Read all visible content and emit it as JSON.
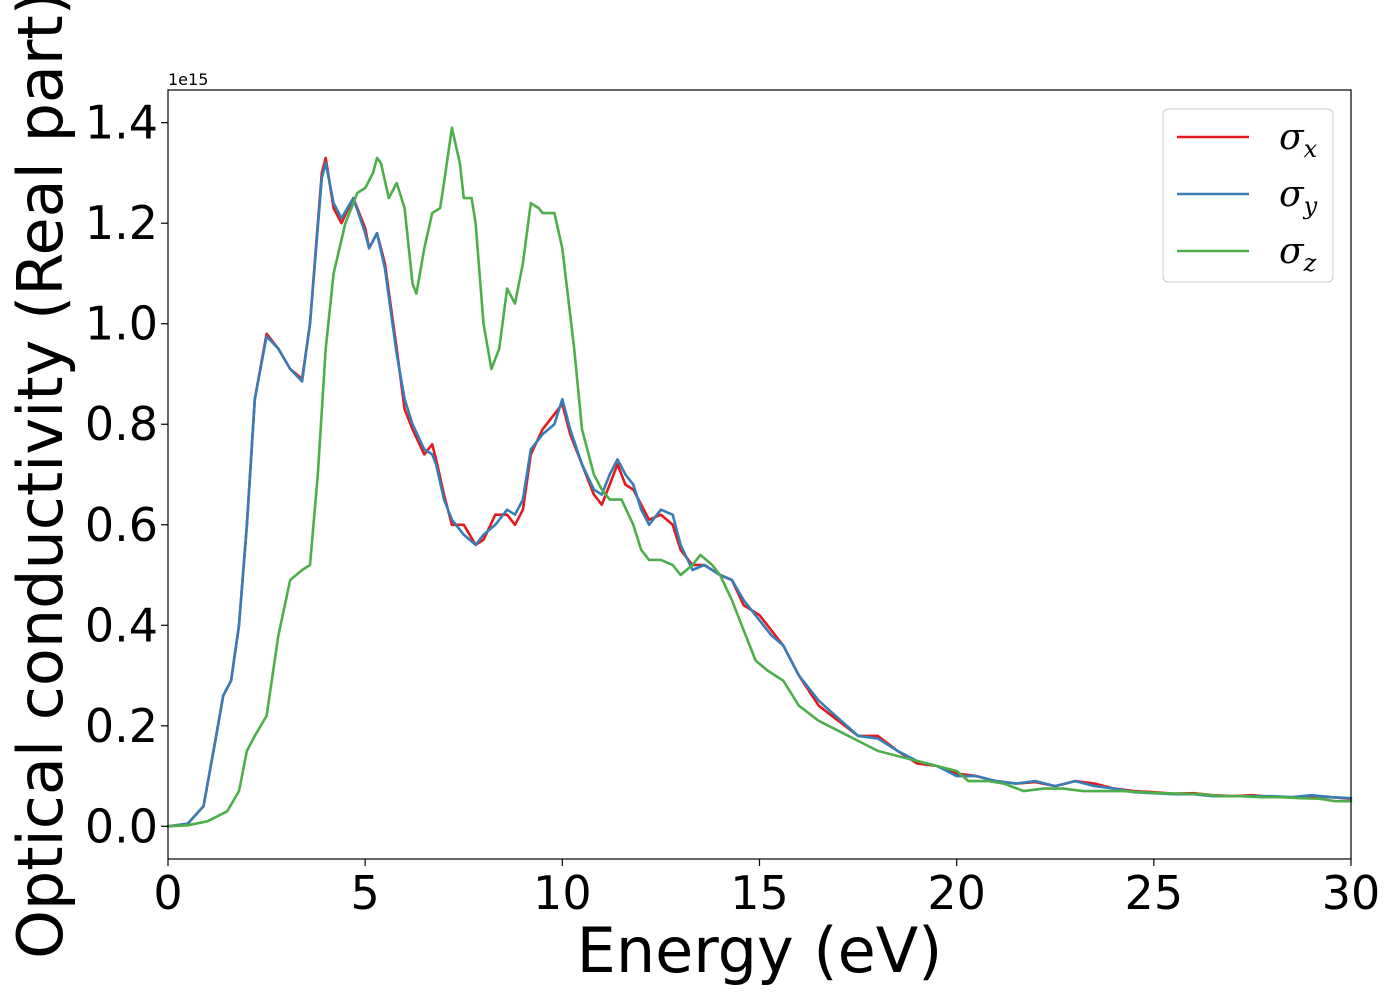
{
  "chart_data": {
    "type": "line",
    "title": "",
    "xlabel": "Energy (eV)",
    "ylabel": "Optical conductivity (Real part)",
    "y_offset_text": "1e15",
    "xlim": [
      0,
      30
    ],
    "ylim": [
      -0.065,
      1.465
    ],
    "x_ticks": [
      0,
      5,
      10,
      15,
      20,
      25,
      30
    ],
    "x_tick_labels": [
      "0",
      "5",
      "10",
      "15",
      "20",
      "25",
      "30"
    ],
    "y_ticks": [
      0.0,
      0.2,
      0.4,
      0.6,
      0.8,
      1.0,
      1.2,
      1.4
    ],
    "y_tick_labels": [
      "0.0",
      "0.2",
      "0.4",
      "0.6",
      "0.8",
      "1.0",
      "1.2",
      "1.4"
    ],
    "grid": false,
    "legend_position": "top-right",
    "series": [
      {
        "name": "σ_x",
        "legend_main": "σ",
        "legend_sub": "x",
        "color": "#e41a1c",
        "points": [
          [
            0,
            0
          ],
          [
            0.5,
            0.005
          ],
          [
            0.9,
            0.04
          ],
          [
            1.2,
            0.17
          ],
          [
            1.4,
            0.26
          ],
          [
            1.6,
            0.29
          ],
          [
            1.8,
            0.4
          ],
          [
            2.0,
            0.6
          ],
          [
            2.2,
            0.85
          ],
          [
            2.5,
            0.98
          ],
          [
            2.8,
            0.95
          ],
          [
            3.1,
            0.91
          ],
          [
            3.4,
            0.89
          ],
          [
            3.6,
            1.0
          ],
          [
            3.9,
            1.3
          ],
          [
            4.0,
            1.33
          ],
          [
            4.2,
            1.23
          ],
          [
            4.4,
            1.2
          ],
          [
            4.7,
            1.25
          ],
          [
            5.0,
            1.19
          ],
          [
            5.1,
            1.15
          ],
          [
            5.3,
            1.18
          ],
          [
            5.5,
            1.12
          ],
          [
            5.8,
            0.95
          ],
          [
            6.0,
            0.83
          ],
          [
            6.2,
            0.79
          ],
          [
            6.5,
            0.74
          ],
          [
            6.7,
            0.76
          ],
          [
            6.8,
            0.73
          ],
          [
            7.0,
            0.66
          ],
          [
            7.2,
            0.6
          ],
          [
            7.5,
            0.6
          ],
          [
            7.8,
            0.56
          ],
          [
            8.0,
            0.57
          ],
          [
            8.3,
            0.62
          ],
          [
            8.6,
            0.62
          ],
          [
            8.8,
            0.6
          ],
          [
            9.0,
            0.63
          ],
          [
            9.2,
            0.74
          ],
          [
            9.5,
            0.79
          ],
          [
            9.8,
            0.82
          ],
          [
            10.0,
            0.84
          ],
          [
            10.2,
            0.78
          ],
          [
            10.5,
            0.72
          ],
          [
            10.8,
            0.66
          ],
          [
            11.0,
            0.64
          ],
          [
            11.2,
            0.68
          ],
          [
            11.4,
            0.72
          ],
          [
            11.6,
            0.68
          ],
          [
            11.8,
            0.67
          ],
          [
            12.0,
            0.64
          ],
          [
            12.2,
            0.61
          ],
          [
            12.5,
            0.62
          ],
          [
            12.8,
            0.6
          ],
          [
            13.0,
            0.55
          ],
          [
            13.3,
            0.52
          ],
          [
            13.6,
            0.52
          ],
          [
            14.0,
            0.5
          ],
          [
            14.3,
            0.49
          ],
          [
            14.6,
            0.44
          ],
          [
            15.0,
            0.42
          ],
          [
            15.3,
            0.39
          ],
          [
            15.6,
            0.36
          ],
          [
            16.0,
            0.3
          ],
          [
            16.5,
            0.24
          ],
          [
            17.0,
            0.21
          ],
          [
            17.5,
            0.18
          ],
          [
            18.0,
            0.18
          ],
          [
            18.5,
            0.15
          ],
          [
            19.0,
            0.125
          ],
          [
            19.5,
            0.12
          ],
          [
            20.0,
            0.105
          ],
          [
            20.5,
            0.1
          ],
          [
            21.0,
            0.09
          ],
          [
            21.5,
            0.085
          ],
          [
            22.0,
            0.088
          ],
          [
            22.5,
            0.08
          ],
          [
            23.0,
            0.09
          ],
          [
            23.5,
            0.085
          ],
          [
            24.0,
            0.075
          ],
          [
            24.5,
            0.07
          ],
          [
            25.0,
            0.068
          ],
          [
            25.5,
            0.065
          ],
          [
            26.0,
            0.066
          ],
          [
            26.5,
            0.062
          ],
          [
            27.0,
            0.06
          ],
          [
            27.5,
            0.062
          ],
          [
            28.0,
            0.058
          ],
          [
            28.5,
            0.058
          ],
          [
            29.0,
            0.06
          ],
          [
            29.5,
            0.058
          ],
          [
            30.0,
            0.055
          ]
        ]
      },
      {
        "name": "σ_y",
        "legend_main": "σ",
        "legend_sub": "y",
        "color": "#377eb8",
        "points": [
          [
            0,
            0
          ],
          [
            0.5,
            0.005
          ],
          [
            0.9,
            0.04
          ],
          [
            1.2,
            0.17
          ],
          [
            1.4,
            0.26
          ],
          [
            1.6,
            0.29
          ],
          [
            1.8,
            0.4
          ],
          [
            2.0,
            0.6
          ],
          [
            2.2,
            0.85
          ],
          [
            2.5,
            0.975
          ],
          [
            2.8,
            0.95
          ],
          [
            3.1,
            0.91
          ],
          [
            3.4,
            0.885
          ],
          [
            3.6,
            1.0
          ],
          [
            3.9,
            1.29
          ],
          [
            4.0,
            1.32
          ],
          [
            4.2,
            1.24
          ],
          [
            4.4,
            1.21
          ],
          [
            4.7,
            1.25
          ],
          [
            5.0,
            1.18
          ],
          [
            5.1,
            1.15
          ],
          [
            5.3,
            1.18
          ],
          [
            5.5,
            1.11
          ],
          [
            5.8,
            0.94
          ],
          [
            6.0,
            0.85
          ],
          [
            6.2,
            0.8
          ],
          [
            6.5,
            0.75
          ],
          [
            6.7,
            0.74
          ],
          [
            6.8,
            0.72
          ],
          [
            7.0,
            0.65
          ],
          [
            7.2,
            0.61
          ],
          [
            7.5,
            0.58
          ],
          [
            7.8,
            0.56
          ],
          [
            8.0,
            0.58
          ],
          [
            8.3,
            0.6
          ],
          [
            8.6,
            0.63
          ],
          [
            8.8,
            0.62
          ],
          [
            9.0,
            0.65
          ],
          [
            9.2,
            0.75
          ],
          [
            9.5,
            0.78
          ],
          [
            9.8,
            0.8
          ],
          [
            10.0,
            0.85
          ],
          [
            10.2,
            0.79
          ],
          [
            10.5,
            0.72
          ],
          [
            10.8,
            0.67
          ],
          [
            11.0,
            0.66
          ],
          [
            11.2,
            0.7
          ],
          [
            11.4,
            0.73
          ],
          [
            11.6,
            0.7
          ],
          [
            11.8,
            0.68
          ],
          [
            12.0,
            0.63
          ],
          [
            12.2,
            0.6
          ],
          [
            12.5,
            0.63
          ],
          [
            12.8,
            0.62
          ],
          [
            13.0,
            0.56
          ],
          [
            13.3,
            0.51
          ],
          [
            13.6,
            0.52
          ],
          [
            14.0,
            0.5
          ],
          [
            14.3,
            0.49
          ],
          [
            14.6,
            0.45
          ],
          [
            15.0,
            0.41
          ],
          [
            15.3,
            0.38
          ],
          [
            15.6,
            0.36
          ],
          [
            16.0,
            0.3
          ],
          [
            16.5,
            0.25
          ],
          [
            17.0,
            0.215
          ],
          [
            17.5,
            0.18
          ],
          [
            18.0,
            0.175
          ],
          [
            18.5,
            0.15
          ],
          [
            19.0,
            0.13
          ],
          [
            19.5,
            0.12
          ],
          [
            20.0,
            0.1
          ],
          [
            20.5,
            0.1
          ],
          [
            21.0,
            0.09
          ],
          [
            21.5,
            0.085
          ],
          [
            22.0,
            0.09
          ],
          [
            22.5,
            0.08
          ],
          [
            23.0,
            0.09
          ],
          [
            23.5,
            0.08
          ],
          [
            24.0,
            0.075
          ],
          [
            24.5,
            0.068
          ],
          [
            25.0,
            0.066
          ],
          [
            25.5,
            0.064
          ],
          [
            26.0,
            0.064
          ],
          [
            26.5,
            0.06
          ],
          [
            27.0,
            0.06
          ],
          [
            27.5,
            0.06
          ],
          [
            28.0,
            0.06
          ],
          [
            28.5,
            0.058
          ],
          [
            29.0,
            0.062
          ],
          [
            29.5,
            0.058
          ],
          [
            30.0,
            0.056
          ]
        ]
      },
      {
        "name": "σ_z",
        "legend_main": "σ",
        "legend_sub": "z",
        "color": "#4daf4a",
        "points": [
          [
            0,
            0
          ],
          [
            0.5,
            0.002
          ],
          [
            1.0,
            0.01
          ],
          [
            1.5,
            0.03
          ],
          [
            1.8,
            0.07
          ],
          [
            2.0,
            0.15
          ],
          [
            2.2,
            0.18
          ],
          [
            2.5,
            0.22
          ],
          [
            2.8,
            0.38
          ],
          [
            3.1,
            0.49
          ],
          [
            3.4,
            0.51
          ],
          [
            3.6,
            0.52
          ],
          [
            3.8,
            0.7
          ],
          [
            4.0,
            0.95
          ],
          [
            4.2,
            1.1
          ],
          [
            4.5,
            1.2
          ],
          [
            4.8,
            1.26
          ],
          [
            5.0,
            1.27
          ],
          [
            5.2,
            1.3
          ],
          [
            5.3,
            1.33
          ],
          [
            5.4,
            1.32
          ],
          [
            5.6,
            1.25
          ],
          [
            5.8,
            1.28
          ],
          [
            6.0,
            1.23
          ],
          [
            6.2,
            1.08
          ],
          [
            6.3,
            1.06
          ],
          [
            6.5,
            1.15
          ],
          [
            6.7,
            1.22
          ],
          [
            6.9,
            1.23
          ],
          [
            7.0,
            1.28
          ],
          [
            7.2,
            1.39
          ],
          [
            7.4,
            1.32
          ],
          [
            7.5,
            1.25
          ],
          [
            7.7,
            1.25
          ],
          [
            7.8,
            1.2
          ],
          [
            8.0,
            1.0
          ],
          [
            8.2,
            0.91
          ],
          [
            8.4,
            0.95
          ],
          [
            8.6,
            1.07
          ],
          [
            8.8,
            1.04
          ],
          [
            9.0,
            1.12
          ],
          [
            9.2,
            1.24
          ],
          [
            9.4,
            1.23
          ],
          [
            9.5,
            1.22
          ],
          [
            9.8,
            1.22
          ],
          [
            10.0,
            1.15
          ],
          [
            10.3,
            0.95
          ],
          [
            10.5,
            0.79
          ],
          [
            10.8,
            0.7
          ],
          [
            11.0,
            0.67
          ],
          [
            11.2,
            0.65
          ],
          [
            11.5,
            0.65
          ],
          [
            11.8,
            0.6
          ],
          [
            12.0,
            0.55
          ],
          [
            12.2,
            0.53
          ],
          [
            12.5,
            0.53
          ],
          [
            12.8,
            0.52
          ],
          [
            13.0,
            0.5
          ],
          [
            13.3,
            0.52
          ],
          [
            13.5,
            0.54
          ],
          [
            13.8,
            0.52
          ],
          [
            14.0,
            0.5
          ],
          [
            14.3,
            0.45
          ],
          [
            14.6,
            0.39
          ],
          [
            14.9,
            0.33
          ],
          [
            15.2,
            0.31
          ],
          [
            15.6,
            0.29
          ],
          [
            16.0,
            0.24
          ],
          [
            16.5,
            0.21
          ],
          [
            17.0,
            0.19
          ],
          [
            17.5,
            0.17
          ],
          [
            18.0,
            0.15
          ],
          [
            18.5,
            0.14
          ],
          [
            19.0,
            0.13
          ],
          [
            19.5,
            0.12
          ],
          [
            20.0,
            0.11
          ],
          [
            20.3,
            0.09
          ],
          [
            20.8,
            0.09
          ],
          [
            21.2,
            0.085
          ],
          [
            21.7,
            0.07
          ],
          [
            22.2,
            0.075
          ],
          [
            22.7,
            0.075
          ],
          [
            23.2,
            0.07
          ],
          [
            23.7,
            0.07
          ],
          [
            24.2,
            0.07
          ],
          [
            24.7,
            0.068
          ],
          [
            25.2,
            0.066
          ],
          [
            25.7,
            0.065
          ],
          [
            26.2,
            0.064
          ],
          [
            26.7,
            0.06
          ],
          [
            27.2,
            0.06
          ],
          [
            27.7,
            0.058
          ],
          [
            28.2,
            0.058
          ],
          [
            28.7,
            0.056
          ],
          [
            29.2,
            0.055
          ],
          [
            29.6,
            0.05
          ],
          [
            30.0,
            0.05
          ]
        ]
      }
    ]
  }
}
